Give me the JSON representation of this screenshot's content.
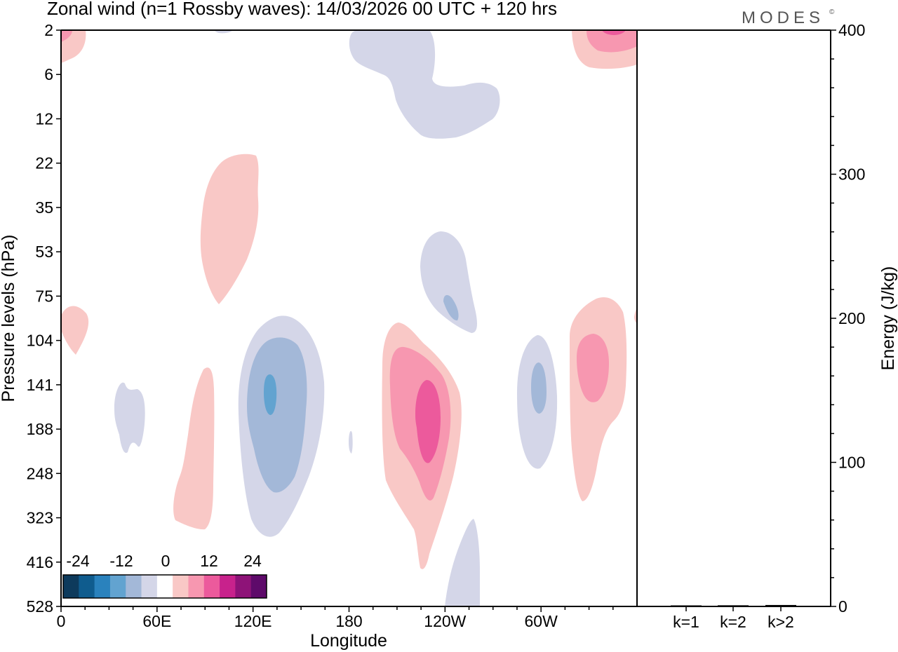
{
  "chart_data": {
    "type": "contour",
    "title": "Zonal wind (n=1 Rossby waves):  14/03/2026  00 UTC  + 120 hrs",
    "brand": "MODES",
    "brand_mark": "©",
    "xlabel": "Longitude",
    "ylabel": "Pressure levels (hPa)",
    "ylabel_right": "Energy (J/kg)",
    "x_ticks": [
      "0",
      "60E",
      "120E",
      "180",
      "120W",
      "60W"
    ],
    "x_tick_values": [
      0,
      60,
      120,
      180,
      240,
      300
    ],
    "x_range": [
      0,
      360
    ],
    "pressure_levels": [
      "2",
      "6",
      "12",
      "22",
      "35",
      "53",
      "75",
      "104",
      "141",
      "188",
      "248",
      "323",
      "416",
      "528"
    ],
    "energy_ticks": [
      "0",
      "100",
      "200",
      "300",
      "400"
    ],
    "energy_tick_values": [
      0,
      100,
      200,
      300,
      400
    ],
    "energy_range": [
      0,
      400
    ],
    "wavenumber_labels": [
      "k=1",
      "k=2",
      "k>2"
    ],
    "energy_values": [
      0.5,
      0.8,
      1.0
    ],
    "colorbar_labels": [
      "-24",
      "-12",
      "0",
      "12",
      "24"
    ],
    "colorbar_colors": [
      "#0d3a5c",
      "#0f5c8e",
      "#2a82bd",
      "#62a3d0",
      "#a3b8d8",
      "#d4d6e8",
      "#ffffff",
      "#f9c8c6",
      "#f797b0",
      "#ec5a9c",
      "#c8228c",
      "#8e1378",
      "#5e0a6a"
    ],
    "contour_colors": {
      "neg1": "#d4d6e8",
      "neg2": "#a3b8d8",
      "neg3": "#62a3d0",
      "pos1": "#f9c8c6",
      "pos2": "#f797b0",
      "pos3": "#ec5a9c"
    }
  }
}
